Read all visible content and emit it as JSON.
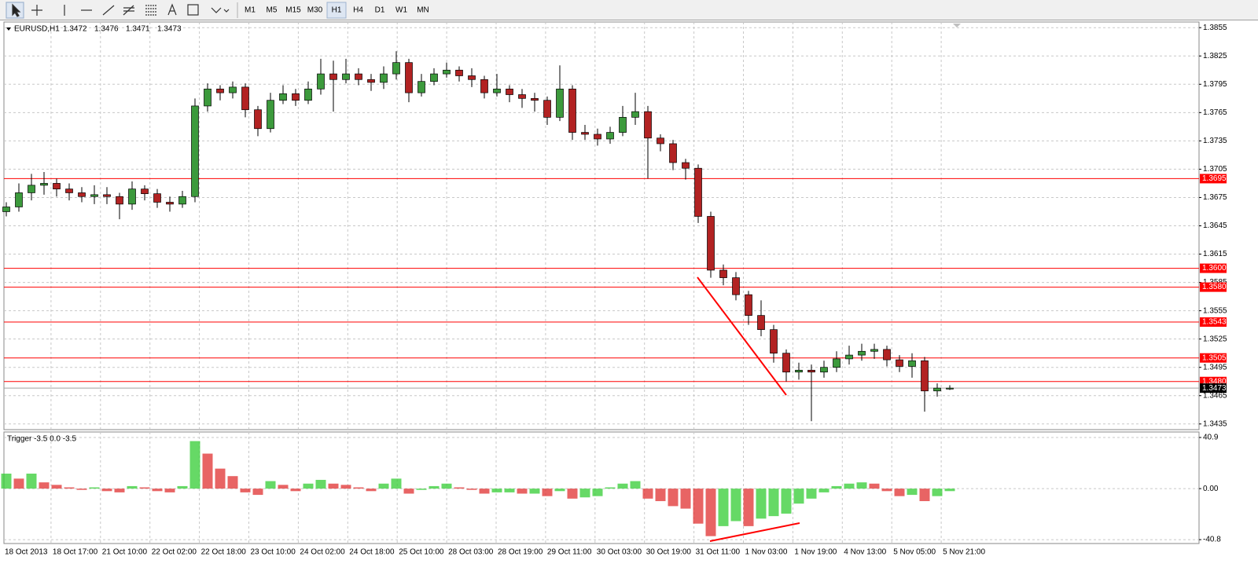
{
  "toolbar": {
    "timeframes": [
      "M1",
      "M5",
      "M15",
      "M30",
      "H1",
      "H4",
      "D1",
      "W1",
      "MN"
    ],
    "active": "H1"
  },
  "chart_data": [
    {
      "type": "candlestick",
      "title": "EURUSD,H1",
      "quote": [
        1.3472,
        1.3476,
        1.3471,
        1.3473
      ],
      "open": [
        1.366,
        1.3665,
        1.368,
        1.3688,
        1.369,
        1.3684,
        1.368,
        1.3676,
        1.3678,
        1.3676,
        1.3668,
        1.3684,
        1.3679,
        1.367,
        1.3668,
        1.3676,
        1.3772,
        1.379,
        1.3786,
        1.3792,
        1.3768,
        1.3748,
        1.3778,
        1.3785,
        1.3778,
        1.379,
        1.3806,
        1.38,
        1.3806,
        1.38,
        1.3797,
        1.3806,
        1.3818,
        1.3786,
        1.3798,
        1.3806,
        1.381,
        1.3804,
        1.38,
        1.3786,
        1.379,
        1.3784,
        1.378,
        1.3778,
        1.376,
        1.379,
        1.3744,
        1.3742,
        1.3737,
        1.3744,
        1.376,
        1.3766,
        1.3738,
        1.3732,
        1.3712,
        1.3706,
        1.3655,
        1.3598,
        1.359,
        1.3572,
        1.355,
        1.3535,
        1.351,
        1.349,
        1.3492,
        1.349,
        1.3495,
        1.3504,
        1.3508,
        1.3512,
        1.3514,
        1.3503,
        1.3496,
        1.3502,
        1.347,
        1.3472
      ],
      "high": [
        1.367,
        1.369,
        1.37,
        1.3702,
        1.3695,
        1.369,
        1.3686,
        1.3688,
        1.3686,
        1.368,
        1.3692,
        1.3688,
        1.3684,
        1.3676,
        1.3682,
        1.378,
        1.3796,
        1.3794,
        1.3798,
        1.3796,
        1.3772,
        1.3786,
        1.3794,
        1.379,
        1.3798,
        1.3822,
        1.382,
        1.3822,
        1.3812,
        1.3806,
        1.3814,
        1.383,
        1.3822,
        1.3806,
        1.3812,
        1.3818,
        1.3814,
        1.3812,
        1.3804,
        1.3806,
        1.3794,
        1.379,
        1.3786,
        1.3782,
        1.3815,
        1.3794,
        1.3752,
        1.3748,
        1.375,
        1.3772,
        1.3786,
        1.3772,
        1.3742,
        1.3736,
        1.3716,
        1.371,
        1.366,
        1.3604,
        1.3596,
        1.3576,
        1.3566,
        1.354,
        1.3514,
        1.35,
        1.3498,
        1.3502,
        1.3512,
        1.3518,
        1.352,
        1.352,
        1.3518,
        1.3508,
        1.351,
        1.3506,
        1.3478,
        1.3476
      ],
      "low": [
        1.3655,
        1.366,
        1.3672,
        1.3678,
        1.3676,
        1.3672,
        1.367,
        1.3668,
        1.3668,
        1.3652,
        1.3662,
        1.3672,
        1.3664,
        1.366,
        1.3664,
        1.367,
        1.3766,
        1.3778,
        1.378,
        1.376,
        1.374,
        1.3744,
        1.3774,
        1.3772,
        1.3774,
        1.3784,
        1.3766,
        1.3796,
        1.3794,
        1.3788,
        1.379,
        1.38,
        1.3776,
        1.3782,
        1.3794,
        1.3802,
        1.3798,
        1.3792,
        1.378,
        1.3782,
        1.3776,
        1.377,
        1.3766,
        1.3752,
        1.3756,
        1.3736,
        1.3736,
        1.373,
        1.3732,
        1.374,
        1.3752,
        1.3695,
        1.3724,
        1.3704,
        1.3694,
        1.3648,
        1.359,
        1.3582,
        1.3566,
        1.354,
        1.3528,
        1.35,
        1.348,
        1.3482,
        1.3438,
        1.3484,
        1.349,
        1.3498,
        1.3502,
        1.3504,
        1.3496,
        1.349,
        1.3484,
        1.3448,
        1.3464,
        1.3471
      ],
      "close": [
        1.3665,
        1.368,
        1.3688,
        1.369,
        1.3684,
        1.368,
        1.3676,
        1.3678,
        1.3676,
        1.3668,
        1.3684,
        1.3679,
        1.367,
        1.3668,
        1.3676,
        1.3772,
        1.379,
        1.3786,
        1.3792,
        1.3768,
        1.3748,
        1.3778,
        1.3785,
        1.3778,
        1.379,
        1.3806,
        1.38,
        1.3806,
        1.38,
        1.3797,
        1.3806,
        1.3818,
        1.3786,
        1.3798,
        1.3806,
        1.381,
        1.3804,
        1.38,
        1.3786,
        1.379,
        1.3784,
        1.378,
        1.3778,
        1.376,
        1.379,
        1.3744,
        1.3742,
        1.3737,
        1.3744,
        1.376,
        1.3766,
        1.3738,
        1.3732,
        1.3712,
        1.3706,
        1.3655,
        1.3598,
        1.359,
        1.3572,
        1.355,
        1.3535,
        1.351,
        1.349,
        1.3492,
        1.349,
        1.3495,
        1.3504,
        1.3508,
        1.3512,
        1.3514,
        1.3503,
        1.3496,
        1.3502,
        1.347,
        1.3473,
        1.3473
      ],
      "up_color": "#3c9a3c",
      "down_color": "#b22222",
      "ylim": [
        1.3429,
        1.3861
      ],
      "yticks": [
        1.3855,
        1.3825,
        1.3795,
        1.3765,
        1.3735,
        1.3705,
        1.3675,
        1.3645,
        1.3615,
        1.3585,
        1.3555,
        1.3525,
        1.3495,
        1.3465,
        1.3435
      ],
      "levels": [
        1.3695,
        {
          "value": 1.36,
          "label": "1.3600"
        },
        {
          "value": 1.358,
          "label": "1.3580"
        },
        1.3543,
        1.3505,
        {
          "value": 1.348,
          "label": "1.3480"
        }
      ],
      "level_color": "#ff0000",
      "last_price": 1.3473,
      "x_labels": [
        "18 Oct 2013",
        "18 Oct 17:00",
        "21 Oct 10:00",
        "22 Oct 02:00",
        "22 Oct 18:00",
        "23 Oct 10:00",
        "24 Oct 02:00",
        "24 Oct 18:00",
        "25 Oct 10:00",
        "28 Oct 03:00",
        "28 Oct 19:00",
        "29 Oct 11:00",
        "30 Oct 03:00",
        "30 Oct 19:00",
        "31 Oct 11:00",
        "1 Nov 03:00",
        "1 Nov 19:00",
        "4 Nov 13:00",
        "5 Nov 05:00",
        "5 Nov 21:00"
      ],
      "grid": true
    },
    {
      "type": "histogram",
      "title": "Trigger -3.5 0.0 -3.5",
      "values": [
        12,
        8,
        12,
        5,
        3,
        1,
        -1,
        1,
        -2,
        -3,
        2,
        1,
        -2,
        -3,
        2,
        38,
        28,
        16,
        10,
        -3,
        -5,
        6,
        3,
        -2,
        4,
        7,
        4,
        3,
        1,
        -2,
        4,
        8,
        -4,
        -1,
        2,
        4,
        1,
        -1,
        -4,
        -3,
        -3,
        -4,
        -4,
        -6,
        -2,
        -8,
        -7,
        -6,
        1,
        4,
        6,
        -8,
        -10,
        -14,
        -16,
        -28,
        -38,
        -30,
        -26,
        -30,
        -24,
        -22,
        -20,
        -12,
        -8,
        -3,
        2,
        4,
        5,
        4,
        -2,
        -6,
        -5,
        -10,
        -6,
        -2
      ],
      "up_color": "#33cc33",
      "down_color": "#e03030",
      "ylim": [
        -43.9,
        45.3
      ],
      "yticks": [
        40.9,
        {
          "value": 0,
          "label": "0.00"
        },
        -40.8
      ],
      "grid": true
    }
  ]
}
